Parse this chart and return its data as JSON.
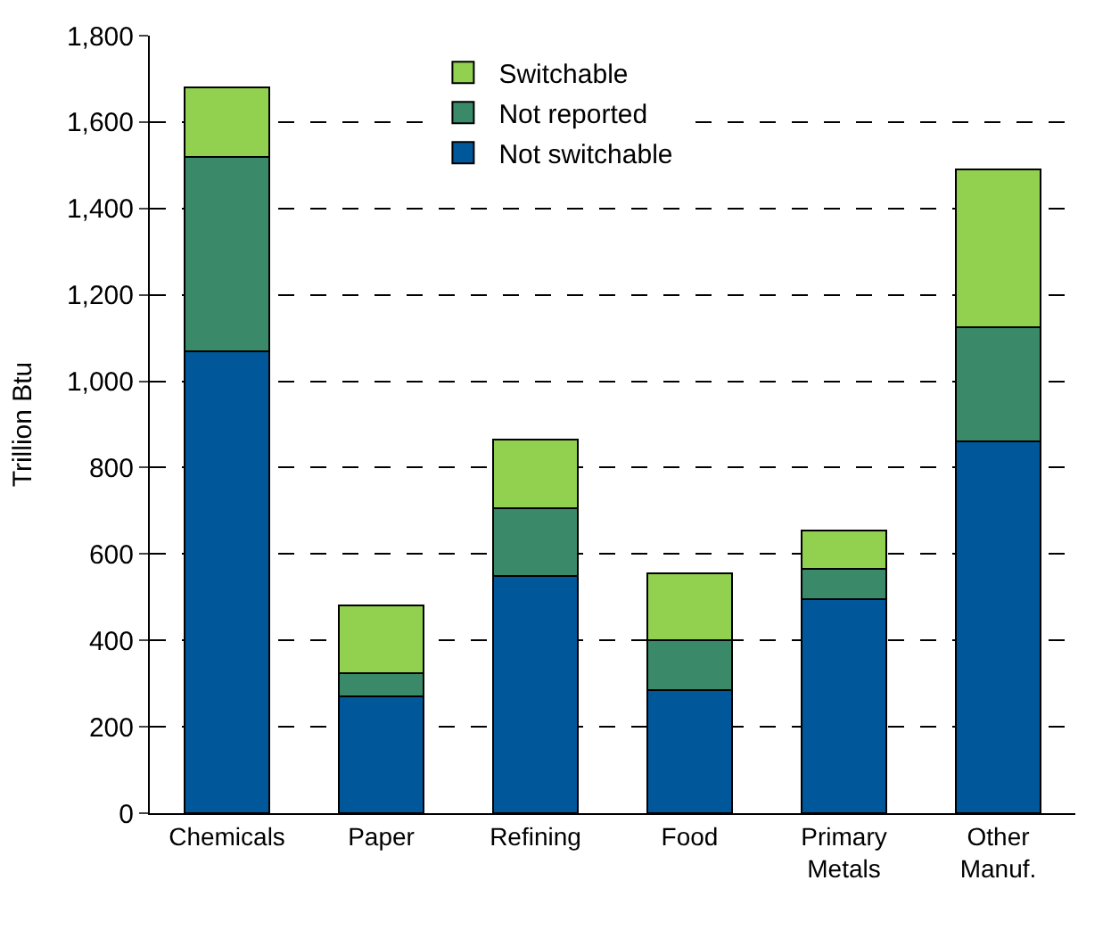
{
  "chart_data": {
    "type": "bar",
    "stacked": true,
    "ylabel": "Trillion Btu",
    "categories": [
      "Chemicals",
      "Paper",
      "Refining",
      "Food",
      "Primary Metals",
      "Other Manuf."
    ],
    "series": [
      {
        "name": "Not switchable",
        "color": "#00589b",
        "values": [
          1070,
          270,
          550,
          285,
          495,
          860
        ]
      },
      {
        "name": "Not reported",
        "color": "#3a8a6a",
        "values": [
          450,
          55,
          155,
          115,
          70,
          265
        ]
      },
      {
        "name": "Switchable",
        "color": "#92d050",
        "values": [
          160,
          155,
          160,
          155,
          90,
          365
        ]
      }
    ],
    "ylim": [
      0,
      1800
    ],
    "yticks": [
      0,
      200,
      400,
      600,
      800,
      {
        "value": 1000,
        "label": "1,000"
      },
      {
        "value": 1200,
        "label": "1,200"
      },
      {
        "value": 1400,
        "label": "1,400"
      },
      {
        "value": 1600,
        "label": "1,600"
      },
      {
        "value": 1800,
        "label": "1,800"
      }
    ],
    "grid": "y",
    "legend": "top"
  }
}
